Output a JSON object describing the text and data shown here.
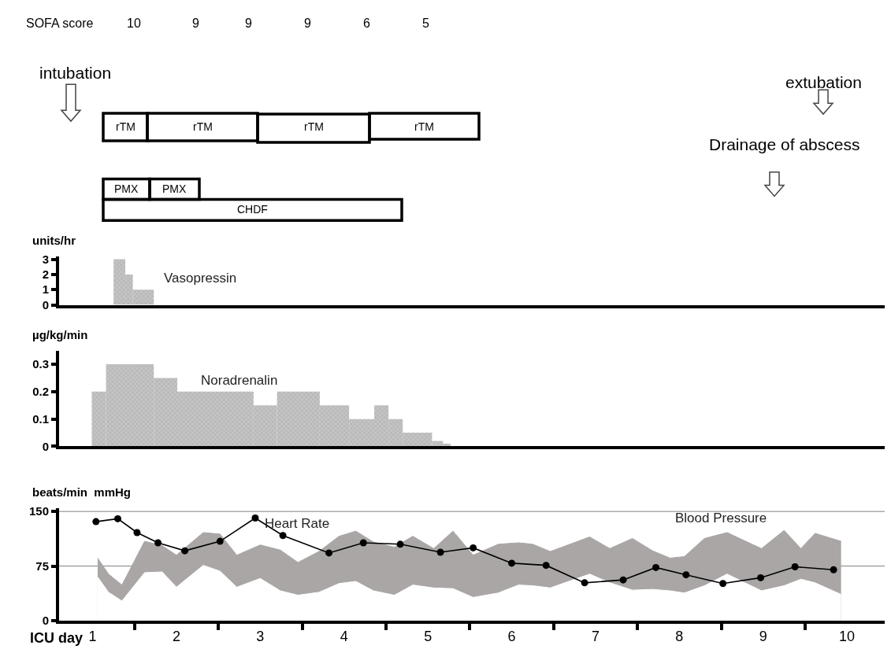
{
  "chart_data": [
    {
      "type": "other",
      "annotations": [
        "SOFA score",
        "10",
        "9",
        "9",
        "9",
        "6",
        "5",
        "intubation",
        "extubation",
        "Drainage of abscess",
        "rTM",
        "rTM",
        "rTM",
        "rTM",
        "PMX",
        "PMX",
        "CHDF"
      ]
    },
    {
      "type": "histogram",
      "ylabel": "units/hr",
      "bins": [
        0.75,
        0.89,
        0.98,
        1.23
      ],
      "values": [
        3,
        2,
        1
      ],
      "color": "#c4c4c4",
      "xlim": [
        0.1,
        9.95
      ],
      "ylim": [
        0,
        3.2
      ],
      "yticks": [
        0,
        1,
        2,
        3
      ],
      "tick_labels": "y",
      "annotations": [
        "Vasopressin"
      ]
    },
    {
      "type": "histogram",
      "ylabel": "µg/kg/min",
      "bins": [
        0.49,
        0.66,
        1.23,
        1.51,
        2.42,
        2.7,
        3.21,
        3.56,
        3.86,
        4.03,
        4.2,
        4.55,
        4.68,
        4.77
      ],
      "values": [
        0.2,
        0.3,
        0.25,
        0.2,
        0.15,
        0.2,
        0.15,
        0.1,
        0.15,
        0.1,
        0.05,
        0.02,
        0.01
      ],
      "color": "#c4c4c4",
      "xlim": [
        0.1,
        9.95
      ],
      "ylim": [
        0,
        0.35
      ],
      "yticks": [
        0,
        0.1,
        0.2,
        0.3
      ],
      "tick_labels": "y",
      "annotations": [
        "Noradrenalin"
      ]
    },
    {
      "type": "line",
      "ylabel": "beats/min  mmHg",
      "xlabel": "ICU day",
      "xlim": [
        0.1,
        9.95
      ],
      "ylim": [
        0,
        155
      ],
      "yticks": [
        0,
        75,
        150
      ],
      "xticks": [
        {
          "value": 0.5,
          "label": "1"
        },
        {
          "value": 1.5,
          "label": "2"
        },
        {
          "value": 2.5,
          "label": "3"
        },
        {
          "value": 3.5,
          "label": "4"
        },
        {
          "value": 4.5,
          "label": "5"
        },
        {
          "value": 5.5,
          "label": "6"
        },
        {
          "value": 6.5,
          "label": "7"
        },
        {
          "value": 7.5,
          "label": "8"
        },
        {
          "value": 8.5,
          "label": "9"
        },
        {
          "value": 9.5,
          "label": "10"
        },
        {
          "value": 1,
          "label": null
        },
        {
          "value": 2,
          "label": null
        },
        {
          "value": 3,
          "label": null
        },
        {
          "value": 4,
          "label": null
        },
        {
          "value": 5,
          "label": null
        },
        {
          "value": 6,
          "label": null
        },
        {
          "value": 7,
          "label": null
        },
        {
          "value": 8,
          "label": null
        },
        {
          "value": 9,
          "label": null
        }
      ],
      "ref_lines": [
        {
          "axis": "y",
          "value": 150,
          "color": "#808080"
        },
        {
          "axis": "y",
          "value": 75,
          "color": "#808080"
        }
      ],
      "series": [
        {
          "type": "area",
          "name": "Blood Pressure",
          "color": "#aaa6a6",
          "x": [
            0.56,
            0.69,
            0.85,
            1.12,
            1.33,
            1.5,
            1.82,
            2.02,
            2.22,
            2.5,
            2.74,
            2.95,
            3.2,
            3.44,
            3.64,
            3.85,
            4.1,
            4.32,
            4.57,
            4.8,
            5.04,
            5.34,
            5.58,
            5.75,
            5.96,
            6.43,
            6.67,
            6.94,
            7.18,
            7.39,
            7.56,
            7.8,
            8.07,
            8.48,
            8.75,
            8.95,
            9.12,
            9.43
          ],
          "values": [
            86,
            64,
            49,
            109,
            103,
            90,
            121,
            119,
            90,
            104,
            97,
            80,
            95,
            116,
            123,
            108,
            101,
            116,
            99,
            123,
            90,
            105,
            107,
            105,
            95,
            115,
            99,
            113,
            96,
            86,
            88,
            113,
            121,
            99,
            124,
            99,
            120,
            109
          ],
          "marker": "none"
        },
        {
          "type": "area",
          "color": "#ffffff",
          "x": [
            0.56,
            0.69,
            0.85,
            1.12,
            1.33,
            1.5,
            1.82,
            2.02,
            2.22,
            2.5,
            2.74,
            2.95,
            3.2,
            3.44,
            3.64,
            3.85,
            4.1,
            4.32,
            4.57,
            4.8,
            5.04,
            5.34,
            5.58,
            5.75,
            5.96,
            6.43,
            6.67,
            6.94,
            7.18,
            7.39,
            7.56,
            7.8,
            8.07,
            8.48,
            8.75,
            8.95,
            9.12,
            9.43
          ],
          "values": [
            60,
            39,
            27,
            66,
            67,
            46,
            76,
            68,
            46,
            58,
            41,
            35,
            39,
            51,
            54,
            41,
            35,
            49,
            45,
            44,
            32,
            38,
            49,
            48,
            45,
            64,
            52,
            42,
            43,
            41,
            38,
            48,
            64,
            41,
            48,
            57,
            52,
            36
          ]
        },
        {
          "type": "line",
          "name": "Heart Rate",
          "color": "#000000",
          "marker": "circle",
          "x": [
            0.54,
            0.8,
            1.03,
            1.28,
            1.6,
            2.02,
            2.44,
            2.77,
            3.32,
            3.73,
            4.17,
            4.65,
            5.04,
            5.5,
            5.91,
            6.37,
            6.83,
            7.22,
            7.58,
            8.02,
            8.47,
            8.88,
            9.34
          ],
          "values": [
            136,
            140,
            121,
            107,
            96,
            109,
            141,
            117,
            93,
            107,
            105,
            94,
            100,
            79,
            76,
            52,
            56,
            73,
            63,
            51,
            59,
            74,
            70
          ]
        }
      ]
    }
  ]
}
